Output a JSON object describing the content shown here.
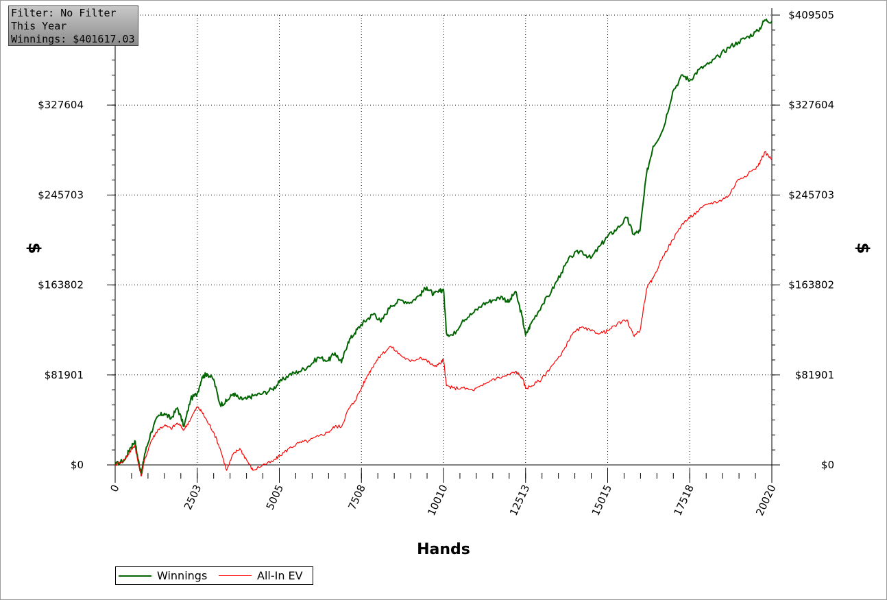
{
  "info_box": {
    "filter": "Filter: No Filter",
    "period": "This Year",
    "winnings": "Winnings: $401617.03"
  },
  "chart_data": {
    "type": "line",
    "xlabel": "Hands",
    "ylabel": "$",
    "xlim": [
      0,
      20020
    ],
    "ylim": [
      -11000,
      409505
    ],
    "x_ticks": [
      "0",
      "2503",
      "5005",
      "7508",
      "10010",
      "12513",
      "15015",
      "17518",
      "20020"
    ],
    "y_ticks": [
      "$0",
      "$81901",
      "$163802",
      "$245703",
      "$327604",
      "$409505"
    ],
    "grid": true,
    "legend_position": "bottom-left",
    "series": [
      {
        "name": "Winnings",
        "color": "#006400",
        "x": [
          0,
          300,
          450,
          600,
          700,
          800,
          900,
          1100,
          1300,
          1500,
          1700,
          1900,
          2100,
          2300,
          2503,
          2650,
          2800,
          3000,
          3200,
          3400,
          3600,
          3800,
          4000,
          4200,
          4500,
          4800,
          5005,
          5300,
          5600,
          5900,
          6200,
          6500,
          6700,
          6900,
          7100,
          7300,
          7508,
          7700,
          7900,
          8100,
          8400,
          8700,
          9000,
          9300,
          9500,
          9700,
          9900,
          10010,
          10100,
          10300,
          10600,
          10900,
          11200,
          11500,
          11800,
          12000,
          12200,
          12400,
          12513,
          12700,
          13000,
          13300,
          13600,
          13900,
          14200,
          14500,
          14800,
          15015,
          15300,
          15600,
          15800,
          16000,
          16200,
          16400,
          16700,
          17000,
          17300,
          17518,
          17800,
          18100,
          18400,
          18700,
          19000,
          19300,
          19600,
          19800,
          20020
        ],
        "y": [
          0,
          5000,
          15000,
          22000,
          5000,
          -8000,
          10000,
          30000,
          44000,
          47000,
          42000,
          52000,
          35000,
          60000,
          65000,
          80000,
          83000,
          78000,
          55000,
          58000,
          65000,
          60000,
          60000,
          63000,
          65000,
          69000,
          75000,
          82000,
          85000,
          90000,
          98000,
          95000,
          102000,
          93000,
          112000,
          120000,
          128000,
          133000,
          138000,
          130000,
          145000,
          150000,
          148000,
          155000,
          162000,
          155000,
          158000,
          160000,
          120000,
          118000,
          132000,
          138000,
          146000,
          150000,
          153000,
          148000,
          158000,
          136000,
          118000,
          130000,
          145000,
          158000,
          175000,
          190000,
          195000,
          188000,
          200000,
          208000,
          215000,
          225000,
          210000,
          213000,
          265000,
          290000,
          305000,
          340000,
          355000,
          350000,
          360000,
          365000,
          372000,
          380000,
          385000,
          390000,
          395000,
          405000,
          404000
        ]
      },
      {
        "name": "All-In EV",
        "color": "#ff0000",
        "x": [
          0,
          300,
          450,
          600,
          700,
          800,
          900,
          1100,
          1300,
          1500,
          1700,
          1900,
          2100,
          2300,
          2503,
          2650,
          2800,
          3000,
          3200,
          3400,
          3600,
          3800,
          4000,
          4200,
          4500,
          4800,
          5005,
          5300,
          5600,
          5900,
          6200,
          6500,
          6700,
          6900,
          7100,
          7300,
          7508,
          7700,
          7900,
          8100,
          8400,
          8700,
          9000,
          9300,
          9500,
          9700,
          9900,
          10010,
          10100,
          10300,
          10600,
          10900,
          11200,
          11500,
          11800,
          12000,
          12200,
          12400,
          12513,
          12700,
          13000,
          13300,
          13600,
          13900,
          14200,
          14500,
          14800,
          15015,
          15300,
          15600,
          15800,
          16000,
          16200,
          16400,
          16700,
          17000,
          17300,
          17518,
          17800,
          18100,
          18400,
          18700,
          19000,
          19300,
          19600,
          19800,
          20020
        ],
        "y": [
          0,
          5000,
          12000,
          18000,
          2000,
          -10000,
          5000,
          22000,
          32000,
          36000,
          33000,
          38000,
          32000,
          42000,
          53000,
          48000,
          40000,
          30000,
          15000,
          -5000,
          10000,
          15000,
          5000,
          -5000,
          0,
          3000,
          8000,
          15000,
          20000,
          22000,
          26000,
          30000,
          35000,
          35000,
          50000,
          58000,
          70000,
          82000,
          92000,
          100000,
          108000,
          100000,
          94000,
          98000,
          95000,
          90000,
          92000,
          96000,
          72000,
          70000,
          70000,
          68000,
          72000,
          78000,
          80000,
          82000,
          85000,
          80000,
          70000,
          72000,
          78000,
          90000,
          100000,
          118000,
          125000,
          122000,
          120000,
          122000,
          128000,
          132000,
          118000,
          122000,
          160000,
          170000,
          190000,
          205000,
          220000,
          225000,
          232000,
          238000,
          240000,
          245000,
          260000,
          265000,
          272000,
          285000,
          278000
        ]
      }
    ]
  }
}
